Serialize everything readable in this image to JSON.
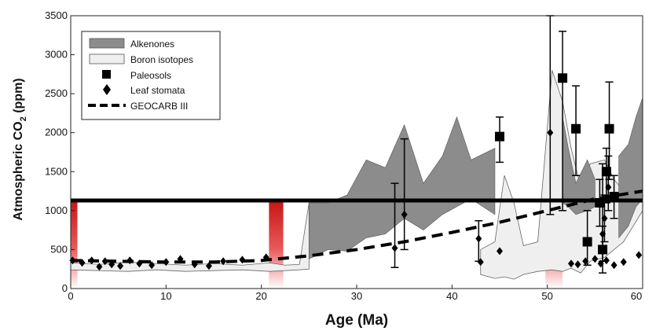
{
  "chart_data": {
    "type": "scatter",
    "xlabel": "Age (Ma)",
    "ylabel_main": "Atmospheric CO",
    "ylabel_sub": "2",
    "ylabel_unit": " (ppm)",
    "xlim": [
      0,
      60
    ],
    "ylim": [
      0,
      3500
    ],
    "x_ticks": [
      "0",
      "10",
      "20",
      "30",
      "40",
      "50",
      "60"
    ],
    "y_ticks": [
      "0",
      "500",
      "1000",
      "1500",
      "2000",
      "2500",
      "3000",
      "3500"
    ],
    "reference_line": {
      "y": 1130,
      "color": "#000000"
    },
    "red_bands": [
      {
        "x0": 0,
        "x1": 0.7
      },
      {
        "x0": 20.8,
        "x1": 22.3
      },
      {
        "x0": 49.8,
        "x1": 51.6
      }
    ],
    "legend": {
      "placement": "top-left",
      "items": [
        {
          "label": "Alkenones",
          "kind": "dark-band"
        },
        {
          "label": "Boron isotopes",
          "kind": "light-band"
        },
        {
          "label": "Paleosols",
          "kind": "square"
        },
        {
          "label": "Leaf stomata",
          "kind": "diamond"
        },
        {
          "label": "GEOCARB III",
          "kind": "dashed-line"
        }
      ]
    },
    "series": [
      {
        "name": "Alkenones",
        "color": "#8c8c8c",
        "bands": [
          {
            "x": [
              25,
              27,
              29,
              31,
              33,
              35,
              37,
              39,
              40.5,
              42,
              44.5
            ],
            "upper": [
              1100,
              1100,
              1200,
              1650,
              1550,
              2100,
              1350,
              1700,
              2200,
              1650,
              1800
            ],
            "lower": [
              380,
              500,
              480,
              650,
              700,
              900,
              750,
              950,
              1050,
              1150,
              950
            ]
          },
          {
            "x": [
              51.6,
              52.2,
              53,
              54.2,
              55
            ],
            "upper": [
              2200,
              1800,
              1350,
              1650,
              1400
            ],
            "lower": [
              1100,
              1050,
              950,
              1000,
              1050
            ]
          },
          {
            "x": [
              57.5,
              58.5,
              59.3,
              60
            ],
            "upper": [
              1700,
              1850,
              2200,
              2450
            ],
            "lower": [
              650,
              800,
              1050,
              1150
            ]
          }
        ]
      },
      {
        "name": "Boron isotopes",
        "color": "#efefef",
        "bands": [
          {
            "x": [
              0,
              3,
              6,
              9,
              12,
              15,
              18,
              20.8,
              22.5,
              24,
              25
            ],
            "upper": [
              330,
              310,
              340,
              320,
              300,
              320,
              300,
              330,
              300,
              310,
              1100
            ],
            "lower": [
              240,
              230,
              220,
              240,
              220,
              230,
              240,
              220,
              230,
              240,
              250
            ]
          },
          {
            "x": [
              43,
              44.5,
              45.5,
              46.5,
              47.5,
              49,
              50.5,
              51.6,
              52.5,
              53.5,
              54.5,
              56,
              57,
              58,
              59,
              60
            ],
            "upper": [
              500,
              600,
              1450,
              1100,
              550,
              600,
              2800,
              2400,
              1800,
              1300,
              1600,
              1650,
              1400,
              1250,
              1700,
              1900
            ],
            "lower": [
              180,
              130,
              150,
              120,
              180,
              220,
              240,
              220,
              260,
              200,
              350,
              400,
              500,
              600,
              800,
              1000
            ]
          }
        ]
      },
      {
        "name": "Paleosols",
        "color": "#000000",
        "points": [
          {
            "x": 45,
            "y": 1950,
            "lo": 1620,
            "hi": 2200
          },
          {
            "x": 51.6,
            "y": 2700,
            "lo": 1000,
            "hi": 3300
          },
          {
            "x": 53,
            "y": 2050,
            "lo": 1450,
            "hi": 2600
          },
          {
            "x": 54.2,
            "y": 600,
            "lo": 300,
            "hi": 1000
          },
          {
            "x": 55.5,
            "y": 1100,
            "lo": 800,
            "hi": 1400
          },
          {
            "x": 55.8,
            "y": 500,
            "lo": 200,
            "hi": 800
          },
          {
            "x": 56.5,
            "y": 2050,
            "lo": 1400,
            "hi": 2650
          },
          {
            "x": 56.2,
            "y": 1500,
            "lo": 1100,
            "hi": 1800
          },
          {
            "x": 57,
            "y": 1180,
            "lo": 900,
            "hi": 1450
          }
        ]
      },
      {
        "name": "Leaf stomata",
        "color": "#000000",
        "points": [
          {
            "x": 0.2,
            "y": 360
          },
          {
            "x": 1.2,
            "y": 330
          },
          {
            "x": 2.2,
            "y": 360
          },
          {
            "x": 3,
            "y": 280
          },
          {
            "x": 3.6,
            "y": 350
          },
          {
            "x": 4.3,
            "y": 310
          },
          {
            "x": 5.2,
            "y": 290
          },
          {
            "x": 6.2,
            "y": 360
          },
          {
            "x": 7.2,
            "y": 320
          },
          {
            "x": 8.5,
            "y": 300
          },
          {
            "x": 10,
            "y": 340
          },
          {
            "x": 11.5,
            "y": 380
          },
          {
            "x": 13,
            "y": 310
          },
          {
            "x": 14.5,
            "y": 290
          },
          {
            "x": 16,
            "y": 350
          },
          {
            "x": 18,
            "y": 370
          },
          {
            "x": 20.5,
            "y": 400
          },
          {
            "x": 34,
            "y": 520,
            "lo": 270,
            "hi": 1350
          },
          {
            "x": 35,
            "y": 950,
            "lo": 500,
            "hi": 1920
          },
          {
            "x": 42.8,
            "y": 640,
            "lo": 350,
            "hi": 870
          },
          {
            "x": 43,
            "y": 340
          },
          {
            "x": 45,
            "y": 480
          },
          {
            "x": 50.3,
            "y": 2000,
            "lo": 950,
            "hi": 3500
          },
          {
            "x": 52.5,
            "y": 320
          },
          {
            "x": 53.2,
            "y": 310
          },
          {
            "x": 54,
            "y": 350
          },
          {
            "x": 55,
            "y": 380
          },
          {
            "x": 55.6,
            "y": 320
          },
          {
            "x": 56.2,
            "y": 360
          },
          {
            "x": 57,
            "y": 300
          },
          {
            "x": 58,
            "y": 340
          },
          {
            "x": 59.6,
            "y": 430
          },
          {
            "x": 55.8,
            "y": 700,
            "lo": 350,
            "hi": 1600
          },
          {
            "x": 56,
            "y": 900,
            "lo": 600,
            "hi": 1200
          },
          {
            "x": 56.4,
            "y": 1300,
            "lo": 1000,
            "hi": 1700
          }
        ]
      },
      {
        "name": "GEOCARB III",
        "color": "#000000",
        "x": [
          0,
          5,
          10,
          15,
          20,
          25,
          30,
          35,
          40,
          45,
          50,
          55,
          60
        ],
        "y": [
          360,
          350,
          340,
          340,
          360,
          420,
          500,
          600,
          720,
          850,
          1000,
          1150,
          1250
        ]
      }
    ]
  }
}
